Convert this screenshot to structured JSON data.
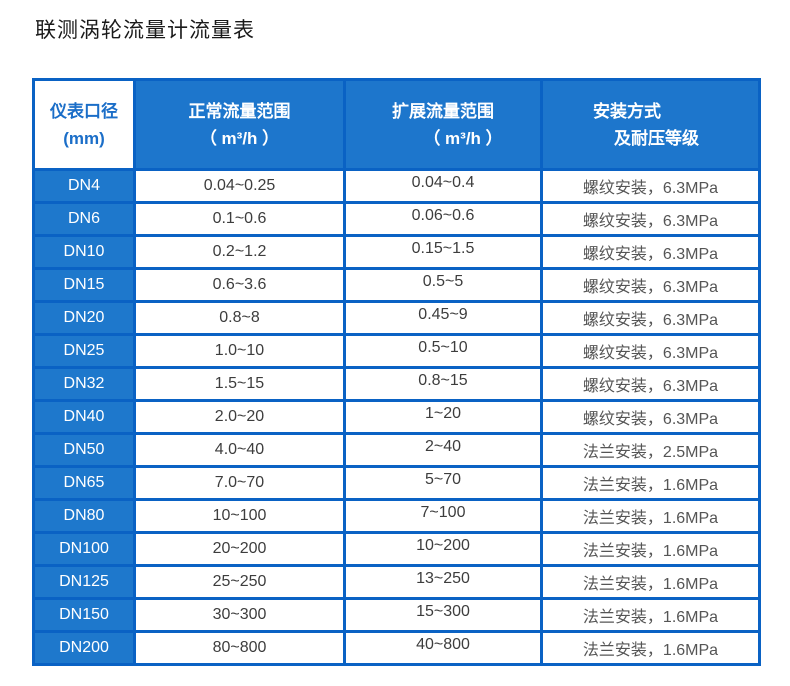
{
  "page_title": "联测涡轮流量计流量表",
  "colors": {
    "table_blue": "#1d76cc",
    "dn_cell_blue": "#1e78cc",
    "border_blue": "#0a62c4",
    "header_text_on_blue": "#ffffff",
    "diameter_header_text_blue": "#1b6ec8",
    "value_text": "#3d3d3d",
    "install_text": "#555555",
    "title_text": "#1a1a1a"
  },
  "table": {
    "headers": {
      "col1": [
        "仪表口径",
        "(mm)"
      ],
      "col2": [
        "正常流量范围",
        "（ m³/h ）"
      ],
      "col3": [
        "扩展流量范围",
        "（ m³/h ）"
      ],
      "col4": [
        "安装方式",
        "及耐压等级"
      ]
    },
    "rows": [
      {
        "dn": "DN4",
        "normal": "0.04~0.25",
        "extended": "0.04~0.4",
        "install": "螺纹安装，6.3MPa"
      },
      {
        "dn": "DN6",
        "normal": "0.1~0.6",
        "extended": "0.06~0.6",
        "install": "螺纹安装，6.3MPa"
      },
      {
        "dn": "DN10",
        "normal": "0.2~1.2",
        "extended": "0.15~1.5",
        "install": "螺纹安装，6.3MPa"
      },
      {
        "dn": "DN15",
        "normal": "0.6~3.6",
        "extended": "0.5~5",
        "install": "螺纹安装，6.3MPa"
      },
      {
        "dn": "DN20",
        "normal": "0.8~8",
        "extended": "0.45~9",
        "install": "螺纹安装，6.3MPa"
      },
      {
        "dn": "DN25",
        "normal": "1.0~10",
        "extended": "0.5~10",
        "install": "螺纹安装，6.3MPa"
      },
      {
        "dn": "DN32",
        "normal": "1.5~15",
        "extended": "0.8~15",
        "install": "螺纹安装，6.3MPa"
      },
      {
        "dn": "DN40",
        "normal": "2.0~20",
        "extended": "1~20",
        "install": "螺纹安装，6.3MPa"
      },
      {
        "dn": "DN50",
        "normal": "4.0~40",
        "extended": "2~40",
        "install": "法兰安装，2.5MPa"
      },
      {
        "dn": "DN65",
        "normal": "7.0~70",
        "extended": "5~70",
        "install": "法兰安装，1.6MPa"
      },
      {
        "dn": "DN80",
        "normal": "10~100",
        "extended": "7~100",
        "install": "法兰安装，1.6MPa"
      },
      {
        "dn": "DN100",
        "normal": "20~200",
        "extended": "10~200",
        "install": "法兰安装，1.6MPa"
      },
      {
        "dn": "DN125",
        "normal": "25~250",
        "extended": "13~250",
        "install": "法兰安装，1.6MPa"
      },
      {
        "dn": "DN150",
        "normal": "30~300",
        "extended": "15~300",
        "install": "法兰安装，1.6MPa"
      },
      {
        "dn": "DN200",
        "normal": "80~800",
        "extended": "40~800",
        "install": "法兰安装，1.6MPa"
      }
    ]
  }
}
